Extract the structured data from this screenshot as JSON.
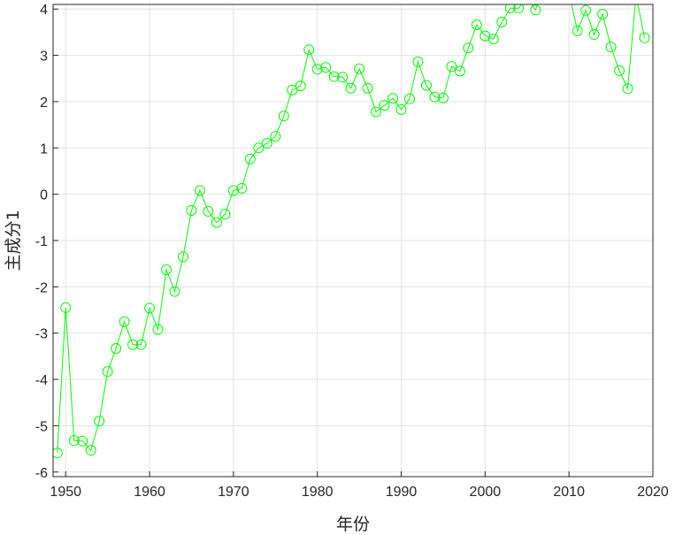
{
  "chart_data": {
    "type": "line",
    "title": "",
    "xlabel": "年份",
    "ylabel": "主成分1",
    "xlim": [
      1948.5,
      2020
    ],
    "ylim": [
      -6.1,
      4.1
    ],
    "xticks": [
      1950,
      1960,
      1970,
      1980,
      1990,
      2000,
      2010,
      2020
    ],
    "yticks": [
      -6,
      -5,
      -4,
      -3,
      -2,
      -1,
      0,
      1,
      2,
      3,
      4
    ],
    "grid": true,
    "marker": "circle",
    "line_color": "#00ff00",
    "series": [
      {
        "name": "",
        "x": [
          1949,
          1950,
          1951,
          1952,
          1953,
          1954,
          1955,
          1956,
          1957,
          1958,
          1959,
          1960,
          1961,
          1962,
          1963,
          1964,
          1965,
          1966,
          1967,
          1968,
          1969,
          1970,
          1971,
          1972,
          1973,
          1974,
          1975,
          1976,
          1977,
          1978,
          1979,
          1980,
          1981,
          1982,
          1983,
          1984,
          1985,
          1986,
          1987,
          1988,
          1989,
          1990,
          1991,
          1992,
          1993,
          1994,
          1995,
          1996,
          1997,
          1998,
          1999,
          2000,
          2001,
          2002,
          2003,
          2004,
          2005,
          2006,
          2007,
          2008,
          2009,
          2010,
          2011,
          2012,
          2013,
          2014,
          2015,
          2016,
          2017,
          2018,
          2019
        ],
        "y": [
          -5.59,
          -2.45,
          -5.32,
          -5.33,
          -5.53,
          -4.9,
          -3.83,
          -3.33,
          -2.75,
          -3.25,
          -3.25,
          -2.46,
          -2.92,
          -1.63,
          -2.1,
          -1.35,
          -0.35,
          0.08,
          -0.37,
          -0.61,
          -0.43,
          0.08,
          0.13,
          0.76,
          1.0,
          1.1,
          1.25,
          1.69,
          2.25,
          2.34,
          3.12,
          2.7,
          2.74,
          2.54,
          2.53,
          2.29,
          2.71,
          2.29,
          1.78,
          1.92,
          2.07,
          1.83,
          2.06,
          2.86,
          2.35,
          2.1,
          2.08,
          2.76,
          2.66,
          3.16,
          3.66,
          3.42,
          3.35,
          3.72,
          4.02,
          4.02,
          4.25,
          3.98,
          4.4,
          4.4,
          4.4,
          4.35,
          3.53,
          3.97,
          3.45,
          3.89,
          3.18,
          2.67,
          2.28,
          4.3,
          3.38
        ]
      }
    ]
  }
}
